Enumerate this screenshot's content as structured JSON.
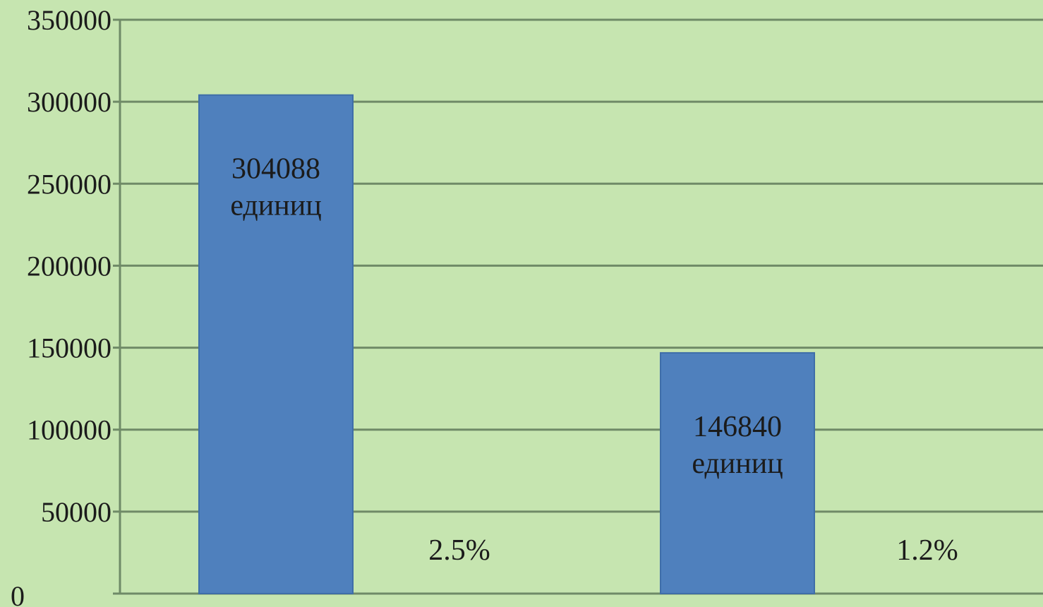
{
  "chart_data": {
    "type": "bar",
    "ylim": [
      0,
      350000
    ],
    "yticks": [
      0,
      50000,
      100000,
      150000,
      200000,
      250000,
      300000,
      350000
    ],
    "grid": true,
    "bars": [
      {
        "value": 304088,
        "label_value": "304088",
        "label_unit": "единиц",
        "annotation": "2.5%"
      },
      {
        "value": 146840,
        "label_value": "146840",
        "label_unit": "единиц",
        "annotation": "1.2%"
      }
    ],
    "colors": {
      "background": "#c6e5b0",
      "bar": "#4f80bd",
      "bar_edge": "#3f6ea8",
      "grid": "#6f8a67",
      "text": "#1b1b1b"
    }
  }
}
